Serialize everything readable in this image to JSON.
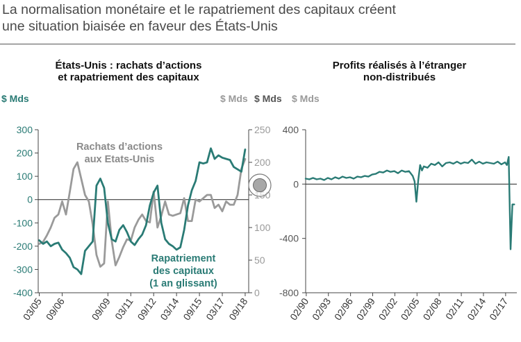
{
  "headline": {
    "line1": "La normalisation monétaire et le rapatriement des capitaux créent",
    "line2": "une situation biaisée en faveur des États-Unis"
  },
  "colors": {
    "teal": "#2a7b75",
    "gray": "#9a9a9a",
    "axis": "#444444",
    "ring": "#7a7a7a"
  },
  "chart_data": [
    {
      "type": "line",
      "title_line1": "États-Unis : rachats d’actions",
      "title_line2": "et rapatriement des capitaux",
      "left_unit": "$ Mds",
      "right_unit": "$ Mds",
      "x_tick_labels": [
        "03/05",
        "09/06",
        "09/09",
        "03/11",
        "09/12",
        "03/14",
        "09/15",
        "03/17",
        "09/18"
      ],
      "x_ticks": [
        2005.17,
        2006.67,
        2009.67,
        2011.17,
        2012.67,
        2014.17,
        2015.67,
        2017.17,
        2018.67
      ],
      "xlim": [
        2005.1,
        2018.9
      ],
      "ylim_left": [
        -400,
        300
      ],
      "yticks_left": [
        -400,
        -300,
        -200,
        -100,
        0,
        100,
        200,
        300
      ],
      "ylim_right": [
        0,
        250
      ],
      "yticks_right": [
        0,
        50,
        100,
        150,
        200,
        250
      ],
      "grid": false,
      "series": [
        {
          "name": "Rachats d’actions aux Etats-Unis",
          "label_line1": "Rachats d’actions",
          "label_line2": "aux Etats-Unis",
          "axis": "right",
          "x": [
            2005.17,
            2005.42,
            2005.67,
            2005.92,
            2006.17,
            2006.42,
            2006.67,
            2006.92,
            2007.17,
            2007.42,
            2007.67,
            2007.92,
            2008.17,
            2008.42,
            2008.67,
            2008.92,
            2009.17,
            2009.42,
            2009.67,
            2009.92,
            2010.17,
            2010.42,
            2010.67,
            2010.92,
            2011.17,
            2011.42,
            2011.67,
            2011.92,
            2012.17,
            2012.42,
            2012.67,
            2012.92,
            2013.17,
            2013.42,
            2013.67,
            2013.92,
            2014.17,
            2014.42,
            2014.67,
            2014.92,
            2015.17,
            2015.42,
            2015.67,
            2015.92,
            2016.17,
            2016.42,
            2016.67,
            2016.92,
            2017.17,
            2017.42,
            2017.67,
            2017.92,
            2018.17,
            2018.42,
            2018.67
          ],
          "values": [
            75,
            78,
            88,
            100,
            115,
            120,
            140,
            120,
            155,
            190,
            200,
            175,
            150,
            140,
            105,
            58,
            40,
            45,
            140,
            80,
            42,
            55,
            70,
            82,
            80,
            100,
            112,
            120,
            110,
            108,
            155,
            100,
            118,
            140,
            120,
            118,
            120,
            122,
            145,
            110,
            110,
            143,
            140,
            145,
            150,
            150,
            130,
            135,
            125,
            140,
            135,
            135,
            150,
            190,
            205
          ]
        },
        {
          "name": "Rapatriement des capitaux (1 an glissant)",
          "label_line1": "Rapatriement",
          "label_line2": "des capitaux",
          "label_line3": "(1 an glissant)",
          "axis": "left",
          "x": [
            2005.17,
            2005.42,
            2005.67,
            2005.92,
            2006.17,
            2006.42,
            2006.67,
            2006.92,
            2007.17,
            2007.42,
            2007.67,
            2007.92,
            2008.17,
            2008.42,
            2008.67,
            2008.92,
            2009.17,
            2009.42,
            2009.67,
            2009.92,
            2010.17,
            2010.42,
            2010.67,
            2010.92,
            2011.17,
            2011.42,
            2011.67,
            2011.92,
            2012.17,
            2012.42,
            2012.67,
            2012.92,
            2013.17,
            2013.42,
            2013.67,
            2013.92,
            2014.17,
            2014.42,
            2014.67,
            2014.92,
            2015.17,
            2015.42,
            2015.67,
            2015.92,
            2016.17,
            2016.42,
            2016.67,
            2016.92,
            2017.17,
            2017.42,
            2017.67,
            2017.92,
            2018.17,
            2018.42,
            2018.67
          ],
          "values": [
            -175,
            -190,
            -180,
            -200,
            -190,
            -185,
            -215,
            -230,
            -250,
            -290,
            -300,
            -320,
            -220,
            -200,
            -180,
            60,
            90,
            50,
            -100,
            -170,
            -180,
            -130,
            -110,
            -140,
            -180,
            -195,
            -170,
            -150,
            -110,
            -25,
            30,
            60,
            -100,
            -170,
            -190,
            -200,
            -215,
            -205,
            -130,
            -25,
            40,
            80,
            160,
            155,
            160,
            220,
            175,
            190,
            180,
            175,
            170,
            140,
            130,
            120,
            215
          ]
        }
      ]
    },
    {
      "type": "line",
      "title_line1": "Profits réalisés à l’étranger",
      "title_line2": "non-distribués",
      "left_unit": "$ Mds",
      "right_unit": "$ Mds",
      "x_tick_labels": [
        "02/90",
        "02/93",
        "02/96",
        "02/99",
        "02/02",
        "02/05",
        "02/08",
        "02/11",
        "02/14",
        "02/17"
      ],
      "x_ticks": [
        1990.08,
        1993.08,
        1996.08,
        1999.08,
        2002.08,
        2005.08,
        2008.08,
        2011.08,
        2014.08,
        2017.08
      ],
      "xlim": [
        1990,
        2018.6
      ],
      "ylim": [
        -800,
        400
      ],
      "yticks": [
        -800,
        -400,
        0,
        400
      ],
      "grid": false,
      "series": [
        {
          "axis": "left",
          "x": [
            1990.0,
            1990.5,
            1991.0,
            1991.5,
            1992.0,
            1992.5,
            1993.0,
            1993.5,
            1994.0,
            1994.5,
            1995.0,
            1995.5,
            1996.0,
            1996.5,
            1997.0,
            1997.5,
            1998.0,
            1998.5,
            1999.0,
            1999.5,
            2000.0,
            2000.5,
            2001.0,
            2001.5,
            2002.0,
            2002.5,
            2003.0,
            2003.5,
            2004.0,
            2004.5,
            2004.75,
            2005.0,
            2005.25,
            2005.5,
            2005.75,
            2006.0,
            2006.5,
            2007.0,
            2007.5,
            2008.0,
            2008.5,
            2009.0,
            2009.5,
            2010.0,
            2010.5,
            2011.0,
            2011.5,
            2012.0,
            2012.5,
            2013.0,
            2013.5,
            2014.0,
            2014.5,
            2015.0,
            2015.5,
            2016.0,
            2016.5,
            2017.0,
            2017.25,
            2017.5,
            2017.75,
            2018.0,
            2018.25
          ],
          "values": [
            40,
            35,
            45,
            35,
            40,
            30,
            45,
            35,
            50,
            40,
            55,
            45,
            50,
            40,
            55,
            50,
            60,
            55,
            70,
            75,
            90,
            85,
            100,
            90,
            95,
            80,
            100,
            90,
            95,
            60,
            20,
            -130,
            30,
            140,
            100,
            130,
            120,
            150,
            140,
            160,
            130,
            155,
            160,
            150,
            165,
            150,
            160,
            155,
            180,
            150,
            165,
            150,
            160,
            155,
            150,
            165,
            145,
            160,
            140,
            200,
            -480,
            -150,
            -150
          ]
        }
      ]
    }
  ]
}
